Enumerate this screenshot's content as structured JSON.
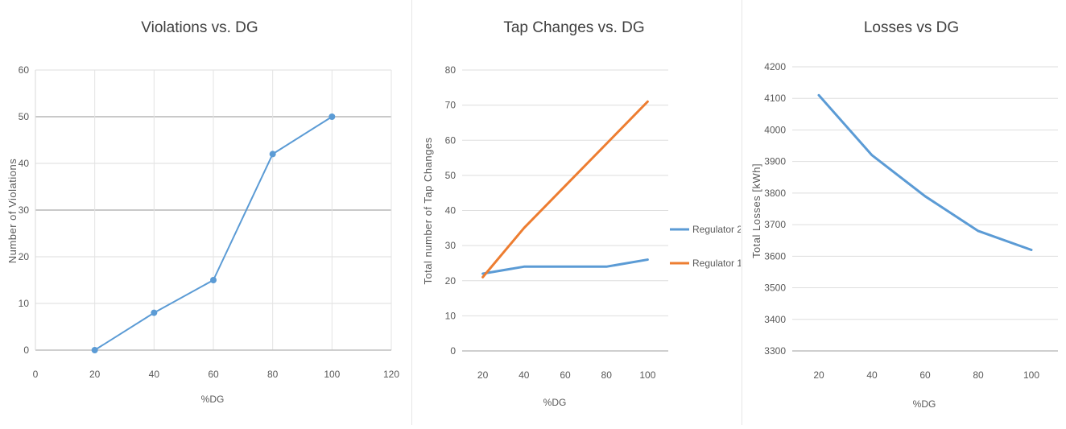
{
  "charts": [
    {
      "title": "Violations vs. DG",
      "xlabel": "%DG",
      "ylabel": "Number of Violations"
    },
    {
      "title": "Tap Changes vs. DG",
      "xlabel": "%DG",
      "ylabel": "Total number of Tap Changes",
      "legend": [
        "Regulator 2",
        "Regulator 1"
      ]
    },
    {
      "title": "Losses vs DG",
      "xlabel": "%DG",
      "ylabel": "Total Losses [kWh]"
    }
  ],
  "chart_data": [
    {
      "type": "scatter",
      "title": "Violations vs. DG",
      "xlabel": "%DG",
      "ylabel": "Number of Violations",
      "xlim": [
        0,
        120
      ],
      "ylim": [
        0,
        60
      ],
      "xticks": [
        0,
        20,
        40,
        60,
        80,
        100,
        120
      ],
      "yticks": [
        0,
        10,
        20,
        30,
        40,
        50,
        60
      ],
      "grid": true,
      "series": [
        {
          "x": [
            20,
            40,
            60,
            80,
            100
          ],
          "values": [
            0,
            8,
            15,
            42,
            50
          ],
          "color": "#5b9bd5"
        }
      ]
    },
    {
      "type": "line",
      "title": "Tap Changes vs. DG",
      "xlabel": "%DG",
      "ylabel": "Total number of Tap Changes",
      "categories": [
        "20",
        "40",
        "60",
        "80",
        "100"
      ],
      "ylim": [
        0,
        80
      ],
      "yticks": [
        0,
        10,
        20,
        30,
        40,
        50,
        60,
        70,
        80
      ],
      "grid": true,
      "legend_position": "right",
      "series": [
        {
          "name": "Regulator 2",
          "values": [
            22,
            24,
            24,
            24,
            26
          ],
          "color": "#5b9bd5"
        },
        {
          "name": "Regulator 1",
          "values": [
            21,
            35,
            47,
            59,
            71
          ],
          "color": "#ed7d31"
        }
      ]
    },
    {
      "type": "line",
      "title": "Losses vs DG",
      "xlabel": "%DG",
      "ylabel": "Total Losses [kWh]",
      "categories": [
        "20",
        "40",
        "60",
        "80",
        "100"
      ],
      "ylim": [
        3300,
        4200
      ],
      "yticks": [
        3300,
        3400,
        3500,
        3600,
        3700,
        3800,
        3900,
        4000,
        4100,
        4200
      ],
      "grid": true,
      "series": [
        {
          "values": [
            4110,
            3920,
            3790,
            3680,
            3620
          ],
          "color": "#5b9bd5"
        }
      ]
    }
  ]
}
